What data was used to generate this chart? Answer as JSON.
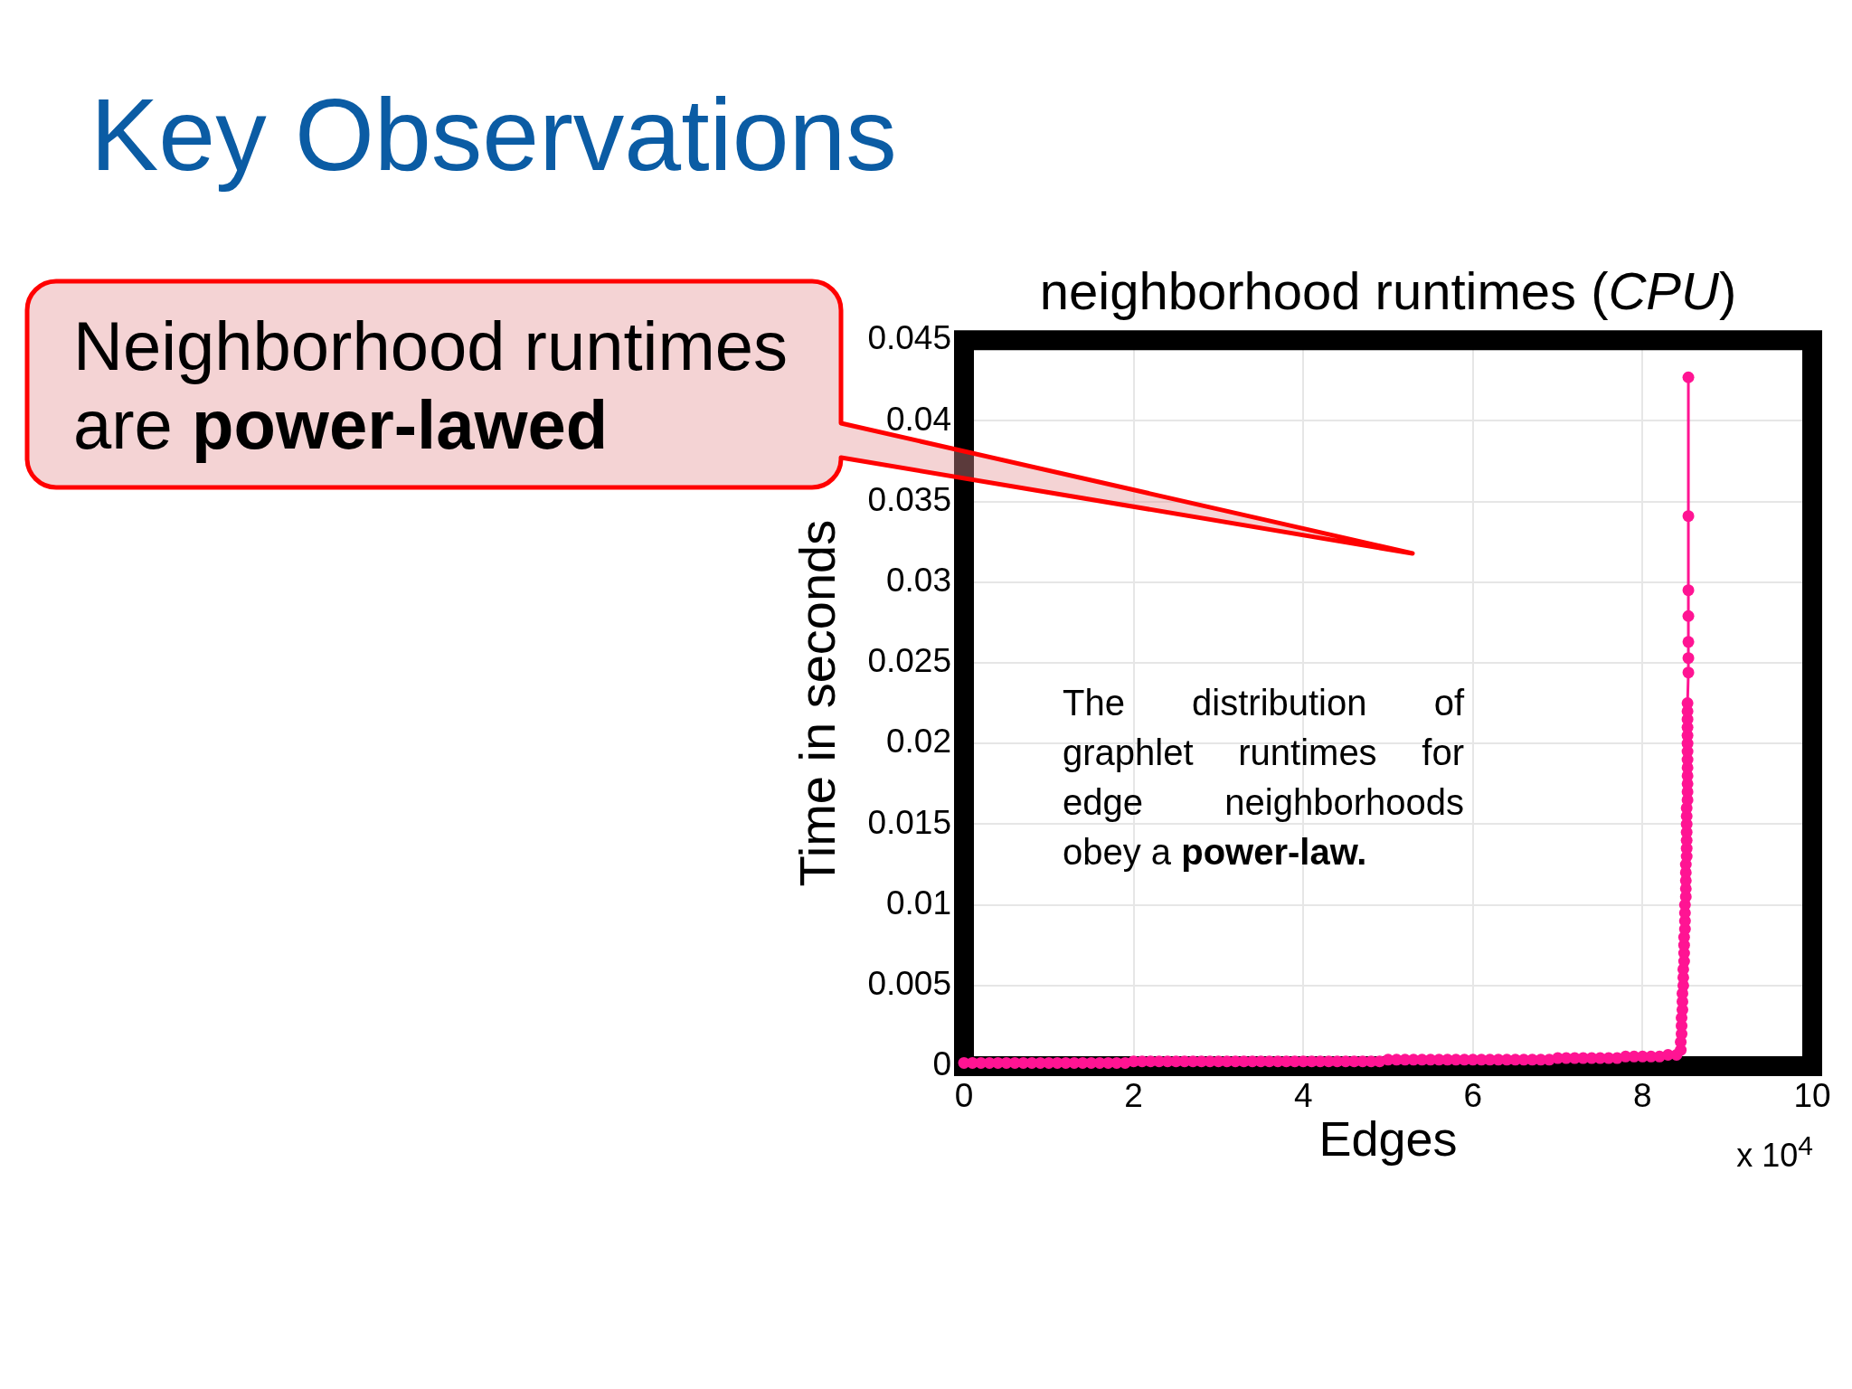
{
  "chart_data": {
    "type": "line",
    "title": "Key Observations",
    "subtitle": "neighborhood runtimes (CPU)",
    "xlabel": "Edges",
    "ylabel": "Time in seconds",
    "x": [
      0,
      0.1,
      0.2,
      0.3,
      0.4,
      0.5,
      0.6,
      0.7,
      0.8,
      0.9,
      1,
      1.1,
      1.2,
      1.3,
      1.4,
      1.5,
      1.6,
      1.7,
      1.8,
      1.9,
      2,
      2.1,
      2.2,
      2.3,
      2.4,
      2.5,
      2.6,
      2.7,
      2.8,
      2.9,
      3,
      3.1,
      3.2,
      3.3,
      3.4,
      3.5,
      3.6,
      3.7,
      3.8,
      3.9,
      4,
      4.1,
      4.2,
      4.3,
      4.4,
      4.5,
      4.6,
      4.7,
      4.8,
      4.9,
      5,
      5.1,
      5.2,
      5.3,
      5.4,
      5.5,
      5.6,
      5.7,
      5.8,
      5.9,
      6,
      6.1,
      6.2,
      6.3,
      6.4,
      6.5,
      6.6,
      6.7,
      6.8,
      6.9,
      7,
      7.1,
      7.2,
      7.3,
      7.4,
      7.5,
      7.6,
      7.7,
      7.8,
      7.9,
      8,
      8.1,
      8.2,
      8.3,
      8.4,
      8.45,
      8.45,
      8.46,
      8.46,
      8.46,
      8.47,
      8.47,
      8.47,
      8.48,
      8.48,
      8.48,
      8.49,
      8.49,
      8.49,
      8.49,
      8.5,
      8.5,
      8.5,
      8.5,
      8.51,
      8.51,
      8.51,
      8.51,
      8.51,
      8.52,
      8.52,
      8.52,
      8.52,
      8.52,
      8.52,
      8.52,
      8.53,
      8.53,
      8.53,
      8.53,
      8.53,
      8.53,
      8.53,
      8.53,
      8.53,
      8.53,
      8.53,
      8.53,
      8.53,
      8.54,
      8.54,
      8.54,
      8.54,
      8.54,
      8.54,
      8.54
    ],
    "values": [
      0.0002,
      0.0002,
      0.0002,
      0.0002,
      0.0002,
      0.0002,
      0.0002,
      0.0002,
      0.0002,
      0.0002,
      0.0002,
      0.0002,
      0.0002,
      0.0002,
      0.0002,
      0.0002,
      0.0002,
      0.0002,
      0.0002,
      0.0002,
      0.0003,
      0.0003,
      0.0003,
      0.0003,
      0.0003,
      0.0003,
      0.0003,
      0.0003,
      0.0003,
      0.0003,
      0.0003,
      0.0003,
      0.0003,
      0.0003,
      0.0003,
      0.0003,
      0.0003,
      0.0003,
      0.0003,
      0.0003,
      0.0003,
      0.0003,
      0.0003,
      0.0003,
      0.0003,
      0.0003,
      0.0003,
      0.0003,
      0.0003,
      0.0003,
      0.0004,
      0.0004,
      0.0004,
      0.0004,
      0.0004,
      0.0004,
      0.0004,
      0.0004,
      0.0004,
      0.0004,
      0.0004,
      0.0004,
      0.0004,
      0.0004,
      0.0004,
      0.0004,
      0.0004,
      0.0004,
      0.0004,
      0.0004,
      0.0005,
      0.0005,
      0.0005,
      0.0005,
      0.0005,
      0.0005,
      0.0005,
      0.0005,
      0.0006,
      0.0006,
      0.0006,
      0.0006,
      0.0006,
      0.0007,
      0.0007,
      0.001,
      0.0015,
      0.002,
      0.0025,
      0.003,
      0.0035,
      0.004,
      0.0045,
      0.005,
      0.0055,
      0.006,
      0.0065,
      0.007,
      0.0075,
      0.008,
      0.0085,
      0.009,
      0.0095,
      0.01,
      0.0105,
      0.011,
      0.0115,
      0.012,
      0.0125,
      0.013,
      0.0135,
      0.014,
      0.0145,
      0.015,
      0.0155,
      0.016,
      0.0165,
      0.017,
      0.0175,
      0.018,
      0.0185,
      0.019,
      0.0195,
      0.02,
      0.0205,
      0.021,
      0.0215,
      0.022,
      0.0225,
      0.0244,
      0.0253,
      0.0263,
      0.0279,
      0.0295,
      0.0341,
      0.0427
    ],
    "color": "#ff1493",
    "marker": "circle",
    "grid": true,
    "xlim": [
      0,
      10
    ],
    "xticks": [
      0,
      2,
      4,
      6,
      8,
      10
    ],
    "ylim": [
      0,
      0.045
    ],
    "yticks": [
      0,
      0.005,
      0.01,
      0.015,
      0.02,
      0.025,
      0.03,
      0.035,
      0.04,
      0.045
    ],
    "annotations": [
      "Neighborhood runtimes are power-lawed",
      "The distribution of graphlet runtimes for edge neighborhoods obey a power-law.",
      "x 10$^{4}$"
    ]
  }
}
